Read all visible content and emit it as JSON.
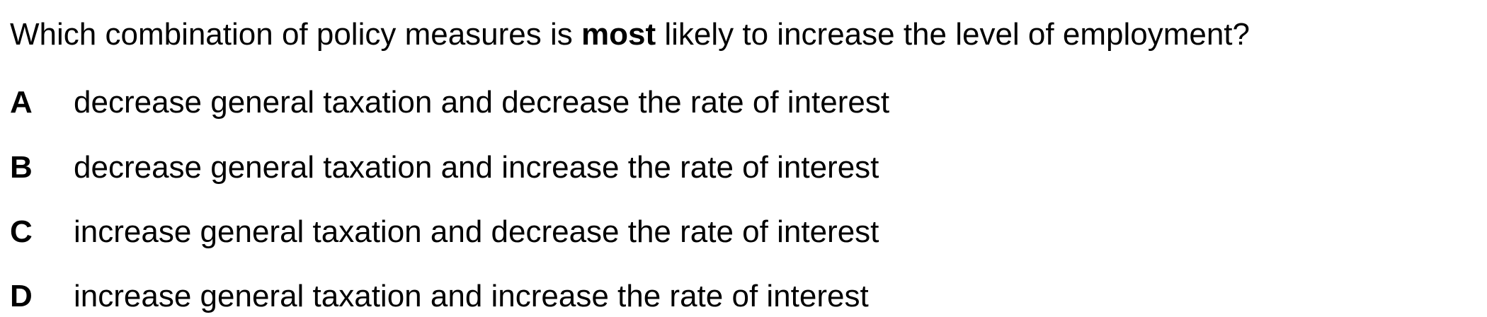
{
  "question": {
    "prefix": "Which combination of policy measures is ",
    "emphasis": "most",
    "suffix": " likely to increase the level of employment?"
  },
  "options": [
    {
      "letter": "A",
      "text": "decrease general taxation and decrease the rate of interest"
    },
    {
      "letter": "B",
      "text": "decrease general taxation and increase the rate of interest"
    },
    {
      "letter": "C",
      "text": "increase general taxation and decrease the rate of interest"
    },
    {
      "letter": "D",
      "text": "increase general taxation and increase the rate of interest"
    }
  ]
}
